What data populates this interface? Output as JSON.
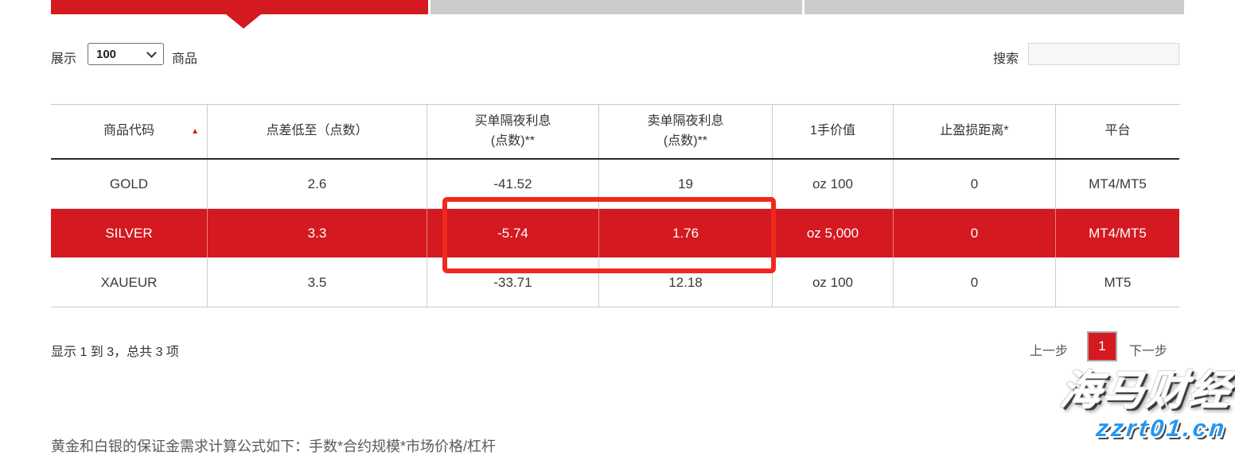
{
  "controls": {
    "show_label": "展示",
    "page_size": "100",
    "items_label": "商品",
    "search_label": "搜索",
    "search_value": ""
  },
  "table": {
    "columns": [
      {
        "label": "商品代码",
        "sort": "asc"
      },
      {
        "label": "点差低至（点数）"
      },
      {
        "label": "买单隔夜利息\n(点数)**"
      },
      {
        "label": "卖单隔夜利息\n(点数)**"
      },
      {
        "label": "1手价值"
      },
      {
        "label": "止盈损距离*"
      },
      {
        "label": "平台"
      }
    ],
    "rows": [
      {
        "highlighted": false,
        "cells": [
          "GOLD",
          "2.6",
          "-41.52",
          "19",
          "oz 100",
          "0",
          "MT4/MT5"
        ]
      },
      {
        "highlighted": true,
        "cells": [
          "SILVER",
          "3.3",
          "-5.74",
          "1.76",
          "oz 5,000",
          "0",
          "MT4/MT5"
        ]
      },
      {
        "highlighted": false,
        "cells": [
          "XAUEUR",
          "3.5",
          "-33.71",
          "12.18",
          "oz 100",
          "0",
          "MT5"
        ]
      }
    ]
  },
  "annotation": {
    "highlights": "SILVER 买单/卖单隔夜利息",
    "values": [
      "-5.74",
      "1.76"
    ]
  },
  "footer": {
    "summary": "显示 1 到 3，总共 3 项",
    "prev_label": "上一步",
    "page_number": "1",
    "next_label": "下一步"
  },
  "note": {
    "text": "黄金和白银的保证金需求计算公式如下：手数*合约规模*市场价格/杠杆"
  },
  "watermark": {
    "brand": "海马财经",
    "domain": "zzrt01.cn"
  },
  "colors": {
    "brand_red": "#d41920",
    "annotation_red": "#f1281e",
    "inactive_tab_gray": "#cccccc",
    "watermark_blue": "#2196f3"
  }
}
